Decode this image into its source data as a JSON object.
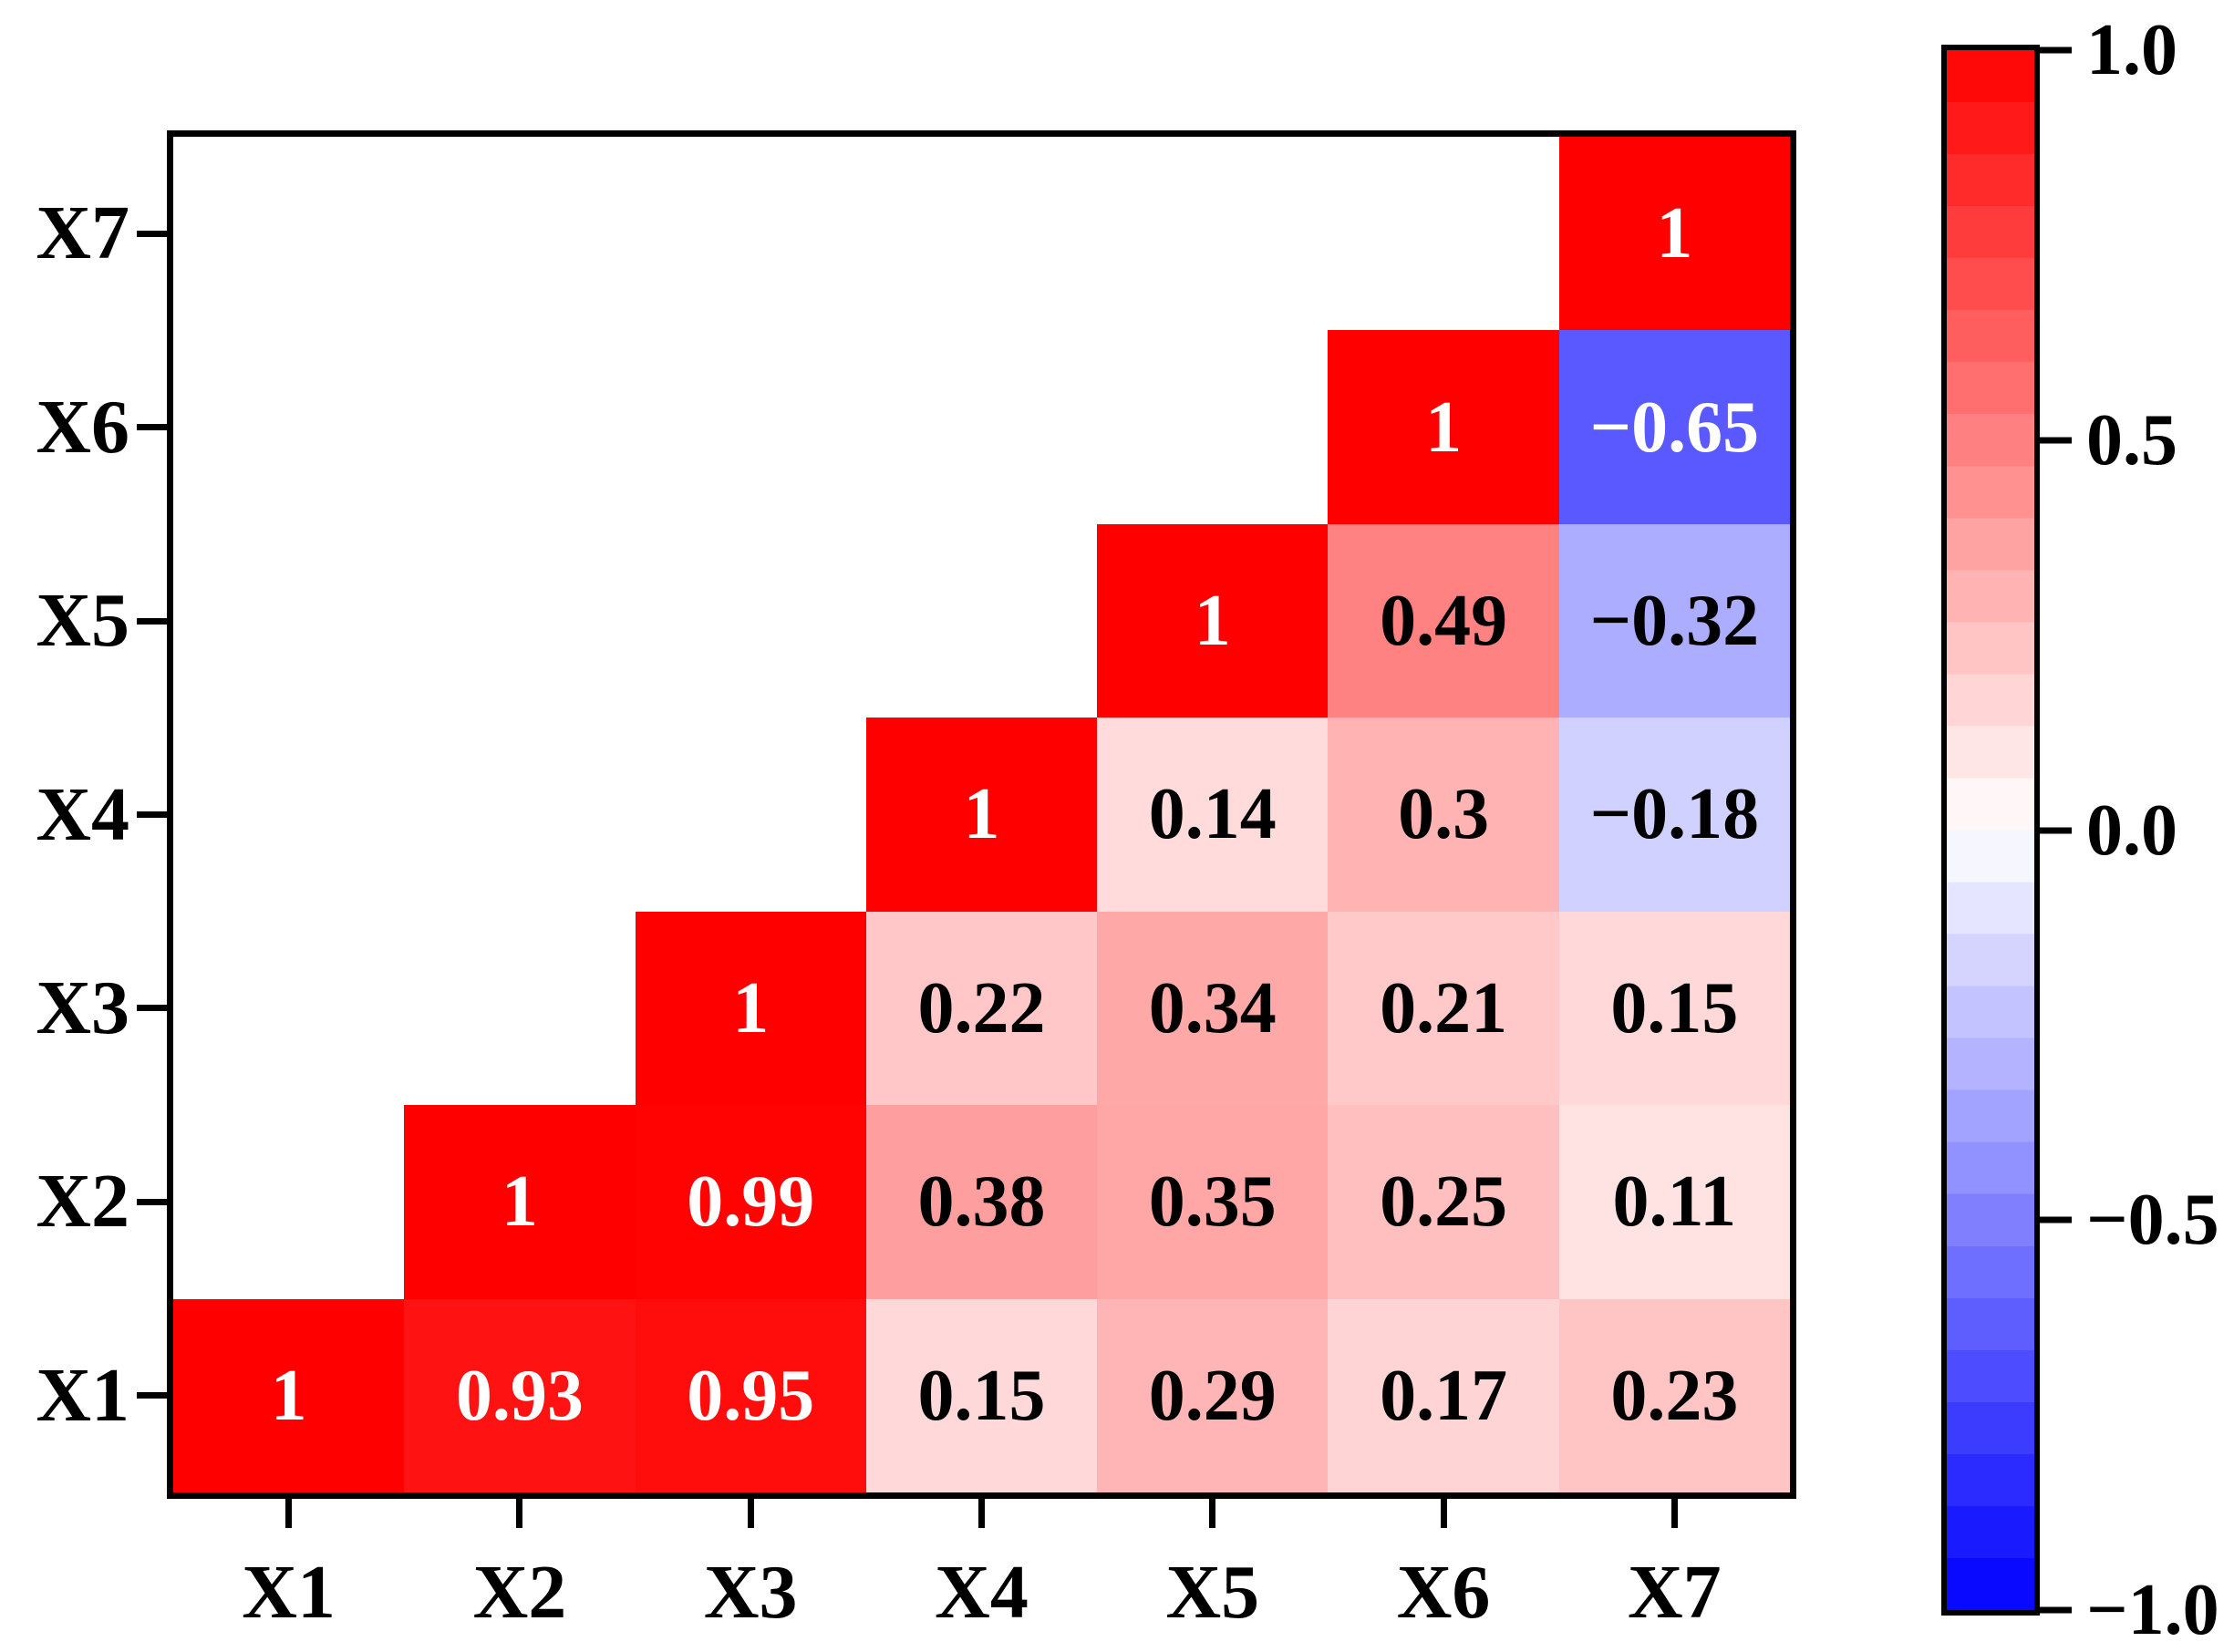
{
  "figure": {
    "background": "#ffffff",
    "frame_color": "#000000"
  },
  "chart_data": {
    "type": "heatmap",
    "title": "",
    "description": "Lower-triangle correlation matrix heatmap of variables X1-X7",
    "x_axis_labels": [
      "X1",
      "X2",
      "X3",
      "X4",
      "X5",
      "X6",
      "X7"
    ],
    "y_axis_labels_top_to_bottom": [
      "X7",
      "X6",
      "X5",
      "X4",
      "X3",
      "X2",
      "X1"
    ],
    "rows_top_to_bottom": [
      {
        "label": "X7",
        "values": [
          null,
          null,
          null,
          null,
          null,
          null,
          1
        ]
      },
      {
        "label": "X6",
        "values": [
          null,
          null,
          null,
          null,
          null,
          1,
          -0.65
        ]
      },
      {
        "label": "X5",
        "values": [
          null,
          null,
          null,
          null,
          1,
          0.49,
          -0.32
        ]
      },
      {
        "label": "X4",
        "values": [
          null,
          null,
          null,
          1,
          0.14,
          0.3,
          -0.18
        ]
      },
      {
        "label": "X3",
        "values": [
          null,
          null,
          1,
          0.22,
          0.34,
          0.21,
          0.15
        ]
      },
      {
        "label": "X2",
        "values": [
          null,
          1,
          0.99,
          0.38,
          0.35,
          0.25,
          0.11
        ]
      },
      {
        "label": "X1",
        "values": [
          1,
          0.93,
          0.95,
          0.15,
          0.29,
          0.17,
          0.23
        ]
      }
    ],
    "colormap": {
      "name": "bwr",
      "vmin": -1,
      "vmax": 1,
      "segments": 30,
      "max_color": "#ff0000",
      "mid_color": "#ffffff",
      "min_color": "#0000ff"
    },
    "colorbar": {
      "tick_labels": [
        "1.0",
        "0.5",
        "0.0",
        "−0.5",
        "−1.0"
      ],
      "tick_values": [
        1,
        0.5,
        0,
        -0.5,
        -1
      ],
      "position": "right"
    },
    "value_text": {
      "light_color": "#ffffff",
      "dark_color": "#000000",
      "light_threshold": 0.6,
      "minus_sign": "−"
    },
    "layout": {
      "grid_on": false,
      "masked_region": "upper-left triangle (white)"
    }
  }
}
